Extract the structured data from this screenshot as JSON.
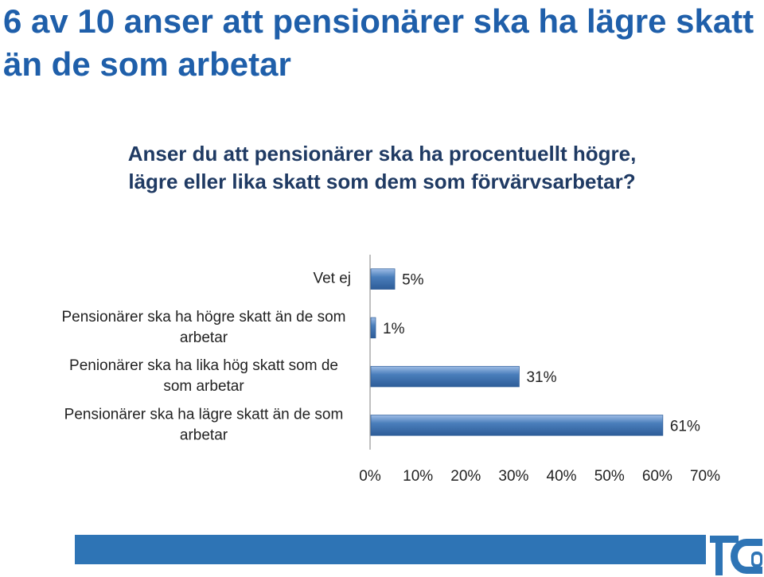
{
  "slide": {
    "title": "6 av 10 anser att pensionärer ska ha lägre skatt än de som arbetar",
    "question": "Anser du att pensionärer ska ha procentuellt högre, lägre eller lika skatt som dem som förvärvsarbetar?",
    "logo_text": "TCO"
  },
  "colors": {
    "title": "#1f5faa",
    "question": "#1f3a63",
    "bar": "#4a7ebb",
    "footer_bar": "#2e74b5",
    "logo": "#2e74b5"
  },
  "chart_data": {
    "type": "bar",
    "orientation": "horizontal",
    "categories": [
      [
        "Vet ej"
      ],
      [
        "Pensionärer ska ha högre skatt än de som",
        "arbetar"
      ],
      [
        "Penionärer ska ha lika hög skatt som de",
        "som arbetar"
      ],
      [
        "Pensionärer ska ha lägre skatt än de som",
        "arbetar"
      ]
    ],
    "values": [
      5,
      1,
      31,
      61
    ],
    "value_labels": [
      "5%",
      "1%",
      "31%",
      "61%"
    ],
    "xlim": [
      0,
      70
    ],
    "xticks": [
      0,
      10,
      20,
      30,
      40,
      50,
      60,
      70
    ],
    "xtick_labels": [
      "0%",
      "10%",
      "20%",
      "30%",
      "40%",
      "50%",
      "60%",
      "70%"
    ],
    "grid": false,
    "legend": "none"
  }
}
